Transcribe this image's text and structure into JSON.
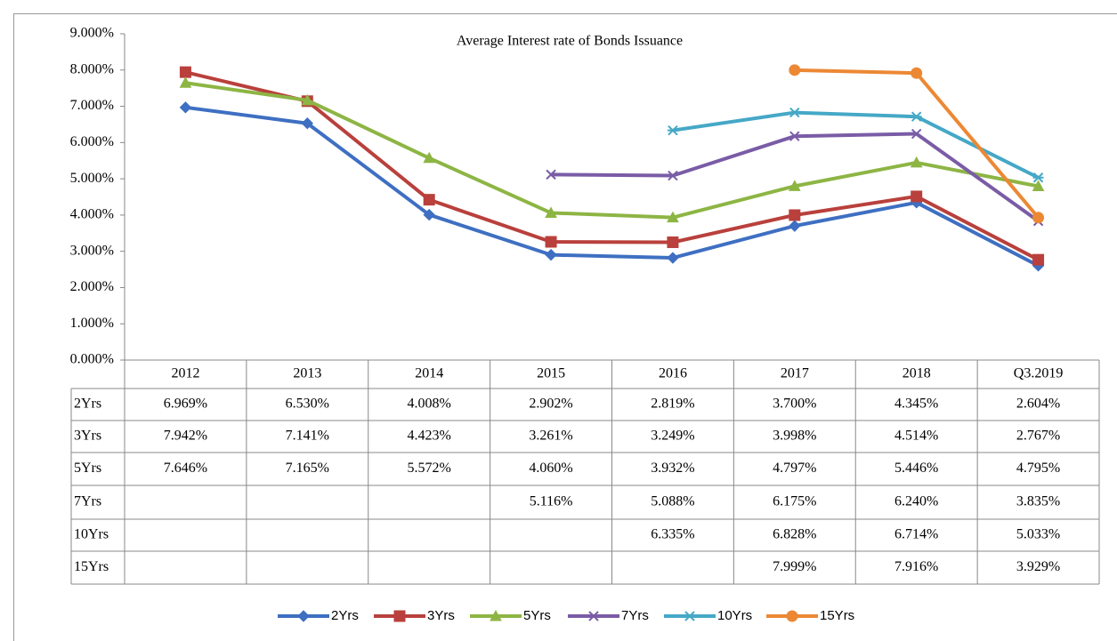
{
  "chart_data": {
    "type": "line",
    "title": "Average Interest rate of Bonds Issuance",
    "categories": [
      "2012",
      "2013",
      "2014",
      "2015",
      "2016",
      "2017",
      "2018",
      "Q3.2019"
    ],
    "ylim": [
      0,
      9
    ],
    "yticks": [
      {
        "value": 0,
        "label": "0.000%"
      },
      {
        "value": 1,
        "label": "1.000%"
      },
      {
        "value": 2,
        "label": "2.000%"
      },
      {
        "value": 3,
        "label": "3.000%"
      },
      {
        "value": 4,
        "label": "4.000%"
      },
      {
        "value": 5,
        "label": "5.000%"
      },
      {
        "value": 6,
        "label": "6.000%"
      },
      {
        "value": 7,
        "label": "7.000%"
      },
      {
        "value": 8,
        "label": "8.000%"
      },
      {
        "value": 9,
        "label": "9.000%"
      }
    ],
    "legend": "bottom",
    "series": [
      {
        "name": "2Yrs",
        "color": "#3e6fc2",
        "marker": "diamond",
        "values": [
          6.969,
          6.53,
          4.008,
          2.902,
          2.819,
          3.7,
          4.345,
          2.604
        ],
        "value_labels": [
          "6.969%",
          "6.530%",
          "4.008%",
          "2.902%",
          "2.819%",
          "3.700%",
          "4.345%",
          "2.604%"
        ]
      },
      {
        "name": "3Yrs",
        "color": "#b9403c",
        "marker": "square",
        "values": [
          7.942,
          7.141,
          4.423,
          3.261,
          3.249,
          3.998,
          4.514,
          2.767
        ],
        "value_labels": [
          "7.942%",
          "7.141%",
          "4.423%",
          "3.261%",
          "3.249%",
          "3.998%",
          "4.514%",
          "2.767%"
        ]
      },
      {
        "name": "5Yrs",
        "color": "#8db544",
        "marker": "triangle",
        "values": [
          7.646,
          7.165,
          5.572,
          4.06,
          3.932,
          4.797,
          5.446,
          4.795
        ],
        "value_labels": [
          "7.646%",
          "7.165%",
          "5.572%",
          "4.060%",
          "3.932%",
          "4.797%",
          "5.446%",
          "4.795%"
        ]
      },
      {
        "name": "7Yrs",
        "color": "#7a5ca6",
        "marker": "x",
        "values": [
          null,
          null,
          null,
          5.116,
          5.088,
          6.175,
          6.24,
          3.835
        ],
        "value_labels": [
          null,
          null,
          null,
          "5.116%",
          "5.088%",
          "6.175%",
          "6.240%",
          "3.835%"
        ]
      },
      {
        "name": "10Yrs",
        "color": "#45a8c6",
        "marker": "star",
        "values": [
          null,
          null,
          null,
          null,
          6.335,
          6.828,
          6.714,
          5.033
        ],
        "value_labels": [
          null,
          null,
          null,
          null,
          "6.335%",
          "6.828%",
          "6.714%",
          "5.033%"
        ]
      },
      {
        "name": "15Yrs",
        "color": "#ec8834",
        "marker": "circle",
        "values": [
          null,
          null,
          null,
          null,
          null,
          7.999,
          7.916,
          3.929
        ],
        "value_labels": [
          null,
          null,
          null,
          null,
          null,
          "7.999%",
          "7.916%",
          "3.929%"
        ]
      }
    ]
  }
}
